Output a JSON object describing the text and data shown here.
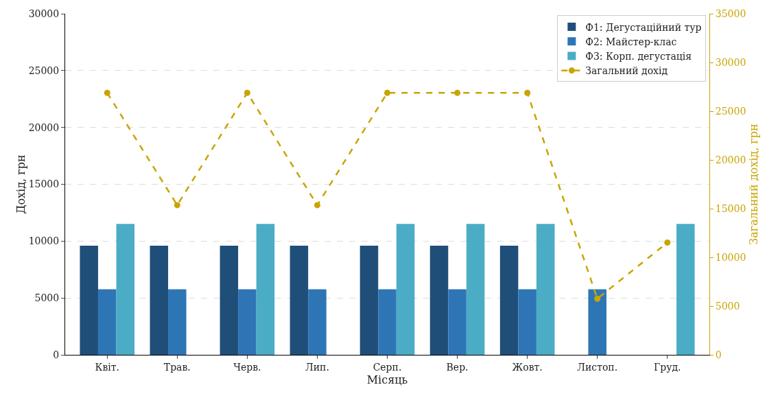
{
  "chart_data": {
    "type": "bar",
    "xlabel": "Місяць",
    "ylabel": "Дохід, грн",
    "y2label": "Загальний дохід, грн",
    "categories": [
      "Квіт.",
      "Трав.",
      "Черв.",
      "Лип.",
      "Серп.",
      "Вер.",
      "Жовт.",
      "Листоп.",
      "Груд."
    ],
    "series": [
      {
        "name": "Ф1: Дегустаційний тур",
        "color": "#1f4e79",
        "values": [
          9600,
          9600,
          9600,
          9600,
          9600,
          9600,
          9600,
          null,
          null
        ]
      },
      {
        "name": "Ф2: Майстер-клас",
        "color": "#2e75b6",
        "values": [
          5760,
          5760,
          5760,
          5760,
          5760,
          5760,
          5760,
          5760,
          null
        ]
      },
      {
        "name": "Ф3: Корп. дегустація",
        "color": "#4bacc6",
        "values": [
          11520,
          null,
          11520,
          null,
          11520,
          11520,
          11520,
          null,
          11520
        ]
      },
      {
        "name": "Загальний дохід",
        "type": "line",
        "axis": "y2",
        "color": "#c9a400",
        "marker": "circle",
        "line_style": "dashed",
        "values": [
          26880,
          15360,
          26880,
          15360,
          26880,
          26880,
          26880,
          5760,
          11520
        ]
      }
    ],
    "ylim": [
      0,
      30000
    ],
    "yticks": [
      0,
      5000,
      10000,
      15000,
      20000,
      25000,
      30000
    ],
    "y2lim": [
      0,
      35000
    ],
    "y2ticks": [
      0,
      5000,
      10000,
      15000,
      20000,
      25000,
      30000,
      35000
    ],
    "grid": "y",
    "legend": "top right"
  }
}
